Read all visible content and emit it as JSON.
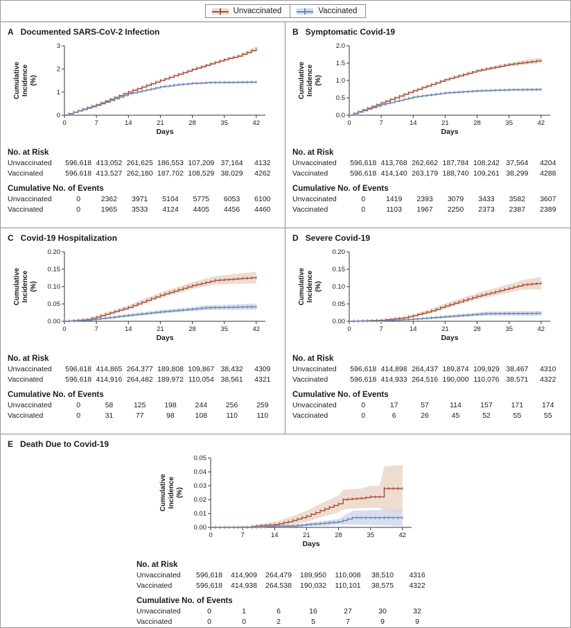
{
  "figure": {
    "legend": [
      {
        "label": "Unvaccinated",
        "color": "#a8513d",
        "band": "#e9d4c4"
      },
      {
        "label": "Vaccinated",
        "color": "#6d86b4",
        "band": "#cdd7e9"
      }
    ],
    "strings": {
      "ylabel_lines": [
        "Cumulative",
        "Incidence",
        "(%)"
      ],
      "xlabel": "Days",
      "at_risk_title": "No. at Risk",
      "events_title": "Cumulative No. of Events",
      "row_labels": [
        "Unvaccinated",
        "Vaccinated"
      ]
    }
  },
  "chart_data": [
    {
      "type": "line",
      "panel": "A",
      "title": "Documented SARS-CoV-2 Infection",
      "xlabel": "Days",
      "ylabel": "Cumulative Incidence (%)",
      "xlim": [
        0,
        44
      ],
      "ylim": [
        0,
        3
      ],
      "xticks": [
        0,
        7,
        14,
        21,
        28,
        35,
        42
      ],
      "yticks": [
        0,
        1,
        2,
        3
      ],
      "ytick_labels": [
        "0",
        "1",
        "2",
        "3"
      ],
      "series": [
        {
          "name": "Unvaccinated",
          "x": [
            0,
            7,
            14,
            21,
            28,
            35,
            38,
            42
          ],
          "y": [
            0,
            0.45,
            1.0,
            1.5,
            1.97,
            2.4,
            2.55,
            2.87
          ],
          "band": [
            0.01,
            0.02,
            0.03,
            0.03,
            0.04,
            0.05,
            0.06,
            0.1
          ]
        },
        {
          "name": "Vaccinated",
          "x": [
            0,
            7,
            14,
            21,
            25,
            28,
            32,
            42
          ],
          "y": [
            0,
            0.42,
            0.92,
            1.22,
            1.32,
            1.37,
            1.41,
            1.43
          ],
          "band": [
            0.01,
            0.02,
            0.03,
            0.03,
            0.03,
            0.04,
            0.04,
            0.05
          ]
        }
      ],
      "at_risk": {
        "rows": [
          {
            "label": "Unvaccinated",
            "values": [
              "596,618",
              "413,052",
              "261,625",
              "186,553",
              "107,209",
              "37,164",
              "4132"
            ]
          },
          {
            "label": "Vaccinated",
            "values": [
              "596,618",
              "413,527",
              "262,180",
              "187,702",
              "108,529",
              "38,029",
              "4262"
            ]
          }
        ]
      },
      "events": {
        "rows": [
          {
            "label": "Unvaccinated",
            "values": [
              "0",
              "2362",
              "3971",
              "5104",
              "5775",
              "6053",
              "6100"
            ]
          },
          {
            "label": "Vaccinated",
            "values": [
              "0",
              "1965",
              "3533",
              "4124",
              "4405",
              "4456",
              "4460"
            ]
          }
        ]
      }
    },
    {
      "type": "line",
      "panel": "B",
      "title": "Symptomatic Covid-19",
      "xlabel": "Days",
      "ylabel": "Cumulative Incidence (%)",
      "xlim": [
        0,
        44
      ],
      "ylim": [
        0,
        2
      ],
      "xticks": [
        0,
        7,
        14,
        21,
        28,
        35,
        42
      ],
      "yticks": [
        0,
        0.5,
        1.0,
        1.5,
        2.0
      ],
      "ytick_labels": [
        "0.0",
        "0.5",
        "1.0",
        "1.5",
        "2.0"
      ],
      "series": [
        {
          "name": "Unvaccinated",
          "x": [
            0,
            7,
            14,
            21,
            28,
            35,
            42
          ],
          "y": [
            0,
            0.35,
            0.7,
            1.02,
            1.28,
            1.46,
            1.58
          ],
          "band": [
            0.005,
            0.02,
            0.025,
            0.03,
            0.04,
            0.05,
            0.08
          ]
        },
        {
          "name": "Vaccinated",
          "x": [
            0,
            7,
            14,
            21,
            28,
            35,
            42
          ],
          "y": [
            0,
            0.3,
            0.52,
            0.64,
            0.7,
            0.73,
            0.74
          ],
          "band": [
            0.005,
            0.015,
            0.02,
            0.025,
            0.03,
            0.03,
            0.04
          ]
        }
      ],
      "at_risk": {
        "rows": [
          {
            "label": "Unvaccinated",
            "values": [
              "596,618",
              "413,768",
              "262,662",
              "187,784",
              "108,242",
              "37,564",
              "4204"
            ]
          },
          {
            "label": "Vaccinated",
            "values": [
              "596,618",
              "414,140",
              "263,179",
              "188,740",
              "109,261",
              "38,299",
              "4288"
            ]
          }
        ]
      },
      "events": {
        "rows": [
          {
            "label": "Unvaccinated",
            "values": [
              "0",
              "1419",
              "2393",
              "3079",
              "3433",
              "3582",
              "3607"
            ]
          },
          {
            "label": "Vaccinated",
            "values": [
              "0",
              "1103",
              "1967",
              "2250",
              "2373",
              "2387",
              "2389"
            ]
          }
        ]
      }
    },
    {
      "type": "line",
      "panel": "C",
      "title": "Covid-19 Hospitalization",
      "xlabel": "Days",
      "ylabel": "Cumulative Incidence (%)",
      "xlim": [
        0,
        44
      ],
      "ylim": [
        0,
        0.2
      ],
      "xticks": [
        0,
        7,
        14,
        21,
        28,
        35,
        42
      ],
      "yticks": [
        0,
        0.05,
        0.1,
        0.15,
        0.2
      ],
      "ytick_labels": [
        "0.00",
        "0.05",
        "0.10",
        "0.15",
        "0.20"
      ],
      "series": [
        {
          "name": "Unvaccinated",
          "x": [
            0,
            5,
            7,
            14,
            21,
            28,
            33,
            42
          ],
          "y": [
            0,
            0.005,
            0.012,
            0.04,
            0.075,
            0.103,
            0.118,
            0.126
          ],
          "band": [
            0.001,
            0.003,
            0.004,
            0.006,
            0.008,
            0.01,
            0.012,
            0.017
          ]
        },
        {
          "name": "Vaccinated",
          "x": [
            0,
            5,
            7,
            14,
            21,
            28,
            31,
            42
          ],
          "y": [
            0,
            0.003,
            0.006,
            0.017,
            0.027,
            0.035,
            0.039,
            0.042
          ],
          "band": [
            0.001,
            0.002,
            0.003,
            0.004,
            0.005,
            0.006,
            0.007,
            0.009
          ]
        }
      ],
      "at_risk": {
        "rows": [
          {
            "label": "Unvaccinated",
            "values": [
              "596,618",
              "414,865",
              "264,377",
              "189,808",
              "109,867",
              "38,432",
              "4309"
            ]
          },
          {
            "label": "Vaccinated",
            "values": [
              "596,618",
              "414,916",
              "264,482",
              "189,972",
              "110,054",
              "38,561",
              "4321"
            ]
          }
        ]
      },
      "events": {
        "rows": [
          {
            "label": "Unvaccinated",
            "values": [
              "0",
              "58",
              "125",
              "198",
              "244",
              "256",
              "259"
            ]
          },
          {
            "label": "Vaccinated",
            "values": [
              "0",
              "31",
              "77",
              "98",
              "108",
              "110",
              "110"
            ]
          }
        ]
      }
    },
    {
      "type": "line",
      "panel": "D",
      "title": "Severe Covid-19",
      "xlabel": "Days",
      "ylabel": "Cumulative Incidence (%)",
      "xlim": [
        0,
        44
      ],
      "ylim": [
        0,
        0.2
      ],
      "xticks": [
        0,
        7,
        14,
        21,
        28,
        35,
        42
      ],
      "yticks": [
        0,
        0.05,
        0.1,
        0.15,
        0.2
      ],
      "ytick_labels": [
        "0.00",
        "0.05",
        "0.10",
        "0.15",
        "0.20"
      ],
      "series": [
        {
          "name": "Unvaccinated",
          "x": [
            0,
            7,
            12,
            14,
            18,
            21,
            28,
            32,
            35,
            38,
            42
          ],
          "y": [
            0,
            0.003,
            0.01,
            0.016,
            0.03,
            0.044,
            0.072,
            0.085,
            0.095,
            0.105,
            0.11
          ],
          "band": [
            0.001,
            0.002,
            0.003,
            0.004,
            0.006,
            0.007,
            0.009,
            0.011,
            0.012,
            0.014,
            0.018
          ]
        },
        {
          "name": "Vaccinated",
          "x": [
            0,
            7,
            14,
            21,
            28,
            30,
            42
          ],
          "y": [
            0,
            0.001,
            0.006,
            0.013,
            0.02,
            0.022,
            0.023
          ],
          "band": [
            0.001,
            0.001,
            0.002,
            0.004,
            0.005,
            0.006,
            0.007
          ]
        }
      ],
      "at_risk": {
        "rows": [
          {
            "label": "Unvaccinated",
            "values": [
              "596,618",
              "414,898",
              "264,437",
              "189,874",
              "109,929",
              "38,467",
              "4310"
            ]
          },
          {
            "label": "Vaccinated",
            "values": [
              "596,618",
              "414,933",
              "264,516",
              "190,000",
              "110,076",
              "38,571",
              "4322"
            ]
          }
        ]
      },
      "events": {
        "rows": [
          {
            "label": "Unvaccinated",
            "values": [
              "0",
              "17",
              "57",
              "114",
              "157",
              "171",
              "174"
            ]
          },
          {
            "label": "Vaccinated",
            "values": [
              "0",
              "6",
              "26",
              "45",
              "52",
              "55",
              "55"
            ]
          }
        ]
      }
    },
    {
      "type": "line",
      "panel": "E",
      "title": "Death Due to Covid-19",
      "xlabel": "Days",
      "ylabel": "Cumulative Incidence (%)",
      "xlim": [
        0,
        44
      ],
      "ylim": [
        0,
        0.05
      ],
      "xticks": [
        0,
        7,
        14,
        21,
        28,
        35,
        42
      ],
      "yticks": [
        0,
        0.01,
        0.02,
        0.03,
        0.04,
        0.05
      ],
      "ytick_labels": [
        "0.00",
        "0.01",
        "0.02",
        "0.03",
        "0.04",
        "0.05"
      ],
      "series": [
        {
          "name": "Unvaccinated",
          "x": [
            0,
            8,
            10,
            14,
            17,
            21,
            24,
            28,
            29,
            33,
            35,
            37,
            38,
            42
          ],
          "y": [
            0,
            0,
            0.001,
            0.002,
            0.004,
            0.008,
            0.012,
            0.017,
            0.02,
            0.021,
            0.022,
            0.022,
            0.028,
            0.028
          ],
          "band": [
            0,
            0.001,
            0.001,
            0.002,
            0.003,
            0.004,
            0.005,
            0.006,
            0.007,
            0.007,
            0.008,
            0.008,
            0.016,
            0.017
          ]
        },
        {
          "name": "Vaccinated",
          "x": [
            0,
            10,
            14,
            18,
            21,
            25,
            28,
            30,
            31,
            42
          ],
          "y": [
            0,
            0,
            0.001,
            0.001,
            0.002,
            0.003,
            0.004,
            0.006,
            0.007,
            0.007
          ],
          "band": [
            0,
            0,
            0.001,
            0.001,
            0.001,
            0.002,
            0.002,
            0.004,
            0.005,
            0.006
          ]
        }
      ],
      "at_risk": {
        "rows": [
          {
            "label": "Unvaccinated",
            "values": [
              "596,618",
              "414,909",
              "264,479",
              "189,950",
              "110,008",
              "38,510",
              "4316"
            ]
          },
          {
            "label": "Vaccinated",
            "values": [
              "596,618",
              "414,938",
              "264,538",
              "190,032",
              "110,101",
              "38,575",
              "4322"
            ]
          }
        ]
      },
      "events": {
        "rows": [
          {
            "label": "Unvaccinated",
            "values": [
              "0",
              "1",
              "6",
              "16",
              "27",
              "30",
              "32"
            ]
          },
          {
            "label": "Vaccinated",
            "values": [
              "0",
              "0",
              "2",
              "5",
              "7",
              "9",
              "9"
            ]
          }
        ]
      }
    }
  ]
}
